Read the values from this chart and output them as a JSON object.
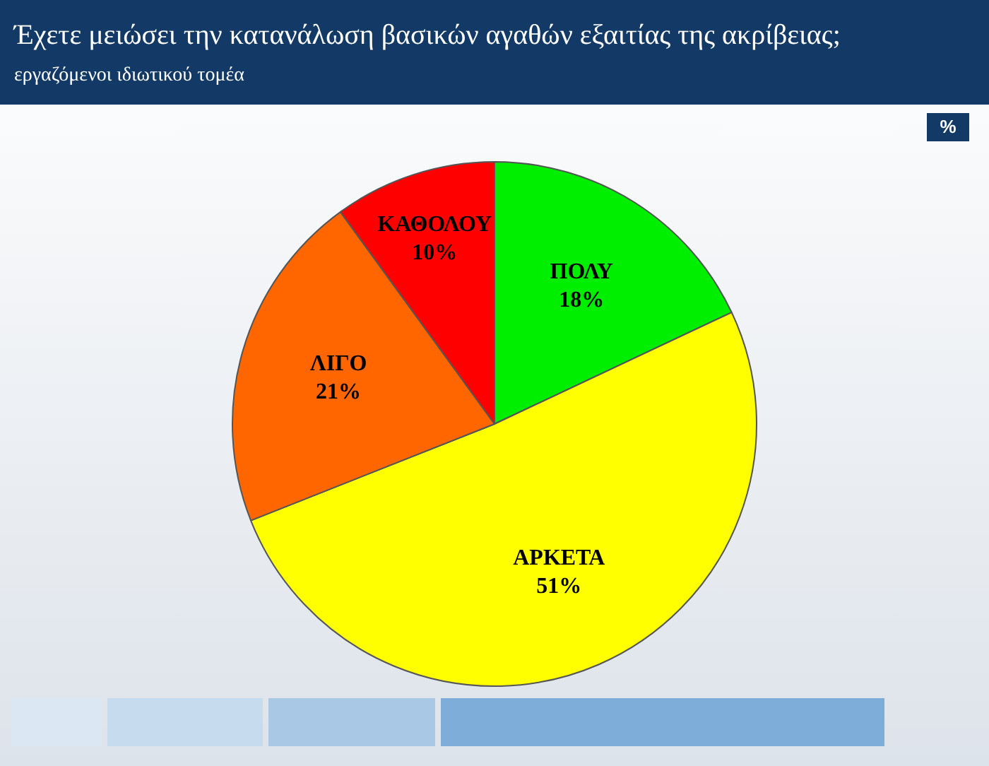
{
  "chart_data": {
    "type": "pie",
    "title": "Έχετε μειώσει την κατανάλωση βασικών αγαθών εξαιτίας της ακρίβειας;",
    "subtitle": "εργαζόμενοι ιδιωτικού τομέα",
    "annotations": [
      "%"
    ],
    "categories": [
      "ΠΟΛΥ",
      "ΑΡΚΕΤΑ",
      "ΛΙΓΟ",
      "ΚΑΘΟΛΟΥ"
    ],
    "values": [
      18,
      51,
      21,
      10
    ],
    "value_labels": [
      "18%",
      "51%",
      "21%",
      "10%"
    ],
    "colors": [
      "#00ee00",
      "#ffff00",
      "#ff6600",
      "#ff0000"
    ],
    "legend": false
  }
}
